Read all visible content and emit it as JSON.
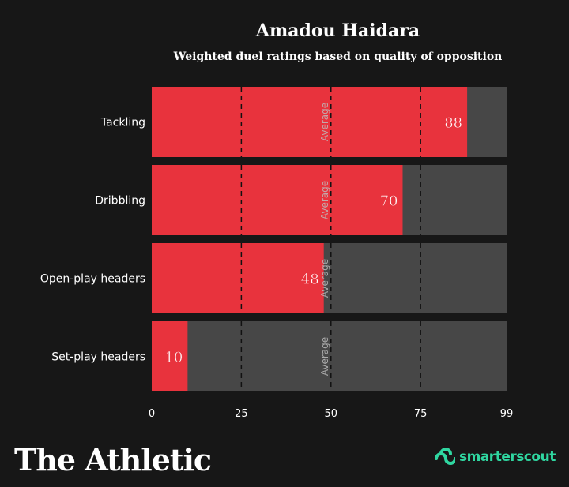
{
  "chart_data": {
    "type": "bar",
    "orientation": "horizontal",
    "title": "Amadou Haidara",
    "subtitle": "Weighted duel ratings based on quality of opposition",
    "categories": [
      "Tackling",
      "Dribbling",
      "Open-play headers",
      "Set-play headers"
    ],
    "values": [
      88,
      70,
      48,
      10
    ],
    "xlim": [
      0,
      99
    ],
    "x_ticks": [
      0,
      25,
      50,
      75,
      99
    ],
    "reference_lines": [
      25,
      50,
      75
    ],
    "average_marker": 50,
    "average_label": "Average",
    "colors": {
      "bar": "#e8333d",
      "track": "#474747",
      "background": "#171717",
      "text": "#ffffff",
      "gridline": "#111111"
    }
  },
  "branding": {
    "publisher": "The Athletic",
    "partner": "smarterscout",
    "partner_color": "#2fd6a0"
  }
}
